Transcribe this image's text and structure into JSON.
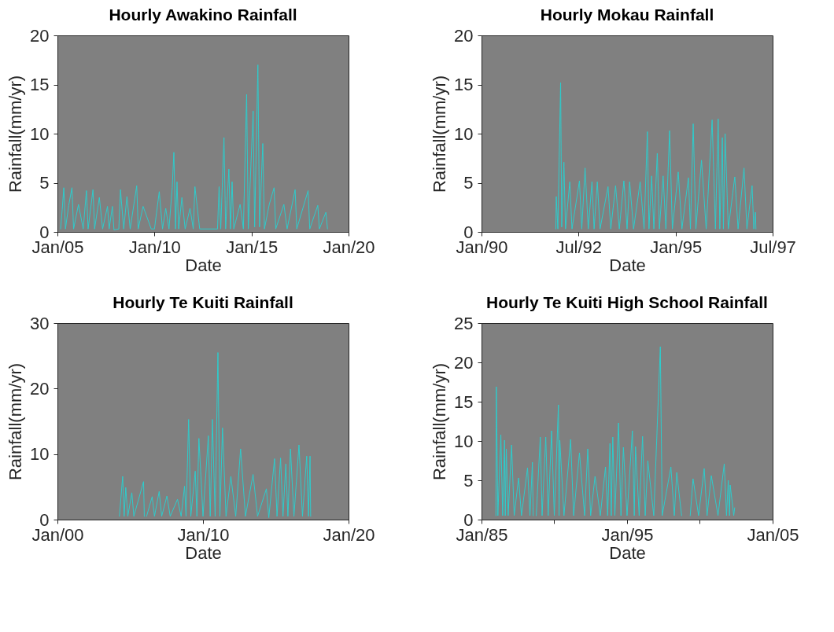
{
  "chart_data": [
    {
      "type": "line",
      "title": "Hourly Awakino Rainfall",
      "xlabel": "Date",
      "ylabel": "Rainfall(mm/yr)",
      "xlim": [
        "2005-01-01",
        "2020-01-01"
      ],
      "xticks": [
        {
          "value": "2005-01-01",
          "label": "Jan/05"
        },
        {
          "value": "2010-01-01",
          "label": "Jan/10"
        },
        {
          "value": "2015-01-01",
          "label": "Jan/15"
        },
        {
          "value": "2020-01-01",
          "label": "Jan/20"
        }
      ],
      "ylim": [
        0,
        20
      ],
      "yticks": [
        0,
        5,
        10,
        15,
        20
      ],
      "series": [
        {
          "color": "#2ecccc",
          "x": [
            "2005-03-01",
            "2005-04-01",
            "2005-05-01",
            "2005-06-01",
            "2005-08-01",
            "2005-10-01",
            "2005-11-01",
            "2006-02-01",
            "2006-05-01",
            "2006-07-01",
            "2006-08-01",
            "2006-11-01",
            "2006-12-01",
            "2007-03-01",
            "2007-05-01",
            "2007-08-01",
            "2007-09-01",
            "2007-11-01",
            "2007-12-01",
            "2008-03-01",
            "2008-04-01",
            "2008-06-01",
            "2008-08-01",
            "2008-10-01",
            "2009-02-01",
            "2009-03-01",
            "2009-06-01",
            "2009-11-01",
            "2010-01-01",
            "2010-04-01",
            "2010-06-01",
            "2010-08-01",
            "2010-10-01",
            "2010-12-01",
            "2011-01-01",
            "2011-02-01",
            "2011-03-01",
            "2011-04-01",
            "2011-06-01",
            "2011-08-01",
            "2011-11-01",
            "2012-01-01",
            "2012-02-01",
            "2012-05-01",
            "2013-04-01",
            "2013-05-01",
            "2013-06-01",
            "2013-08-01",
            "2013-09-01",
            "2013-11-01",
            "2013-12-01",
            "2014-01-01",
            "2014-02-01",
            "2014-06-01",
            "2014-08-01",
            "2014-10-01",
            "2014-11-01",
            "2015-02-01",
            "2015-03-01",
            "2015-05-01",
            "2015-06-01",
            "2015-08-01",
            "2015-09-01",
            "2015-12-01",
            "2016-03-01",
            "2016-04-01",
            "2016-09-01",
            "2016-11-01",
            "2017-04-01",
            "2017-05-01",
            "2017-12-01",
            "2018-01-01",
            "2018-06-01",
            "2018-07-01",
            "2018-11-01",
            "2018-12-01"
          ],
          "values": [
            0.3,
            2.3,
            4.5,
            0.3,
            2.7,
            4.5,
            0.3,
            2.8,
            0.3,
            4.2,
            0.3,
            4.3,
            0.3,
            3.5,
            0.3,
            2.6,
            0.3,
            2.6,
            0.2,
            0.3,
            4.3,
            0.3,
            3.6,
            0.3,
            4.7,
            0.3,
            2.6,
            0.3,
            0.3,
            4.1,
            0.3,
            2.4,
            0.3,
            4.5,
            8.1,
            0.3,
            5.1,
            0.3,
            3.5,
            0.3,
            2.4,
            0.3,
            4.6,
            0.3,
            0.3,
            4.6,
            0.3,
            9.6,
            0.3,
            6.4,
            0.3,
            5.1,
            0.3,
            2.8,
            0.3,
            14.0,
            0.3,
            12.3,
            0.5,
            17.0,
            0.5,
            9.0,
            0.3,
            2.8,
            4.5,
            0.3,
            2.8,
            0.3,
            4.3,
            0.3,
            4.2,
            0.3,
            2.7,
            0.3,
            2.0,
            0.3
          ]
        }
      ]
    },
    {
      "type": "line",
      "title": "Hourly Mokau Rainfall",
      "xlabel": "Date",
      "ylabel": "Rainfall(mm/yr)",
      "xlim": [
        "1990-01-01",
        "1997-07-01"
      ],
      "xticks": [
        {
          "value": "1990-01-01",
          "label": "Jan/90"
        },
        {
          "value": "1992-07-01",
          "label": "Jul/92"
        },
        {
          "value": "1995-01-01",
          "label": "Jan/95"
        },
        {
          "value": "1997-07-01",
          "label": "Jul/97"
        }
      ],
      "ylim": [
        0,
        20
      ],
      "yticks": [
        0,
        5,
        10,
        15,
        20
      ],
      "series": [
        {
          "color": "#2ecccc",
          "x": [
            "1991-12-01",
            "1991-12-05",
            "1991-12-20",
            "1992-01-15",
            "1992-01-25",
            "1992-02-15",
            "1992-03-01",
            "1992-04-10",
            "1992-05-01",
            "1992-07-10",
            "1992-08-01",
            "1992-09-01",
            "1992-10-01",
            "1992-11-05",
            "1992-11-25",
            "1992-12-25",
            "1993-01-20",
            "1993-04-05",
            "1993-05-01",
            "1993-06-15",
            "1993-07-20",
            "1993-09-01",
            "1993-10-01",
            "1993-10-25",
            "1993-12-01",
            "1994-02-01",
            "1994-03-10",
            "1994-04-10",
            "1994-04-25",
            "1994-05-20",
            "1994-06-10",
            "1994-07-12",
            "1994-08-01",
            "1994-09-05",
            "1994-10-01",
            "1994-11-05",
            "1994-12-01",
            "1995-01-25",
            "1995-03-01",
            "1995-05-01",
            "1995-05-20",
            "1995-06-15",
            "1995-07-10",
            "1995-09-01",
            "1995-10-15",
            "1995-12-10",
            "1996-01-10",
            "1996-02-05",
            "1996-02-20",
            "1996-03-15",
            "1996-03-25",
            "1996-04-10",
            "1996-05-10",
            "1996-07-10",
            "1996-08-10",
            "1996-10-05",
            "1996-11-01",
            "1996-12-20",
            "1997-01-05",
            "1997-01-20",
            "1997-01-25"
          ],
          "values": [
            0.3,
            3.6,
            0.3,
            15.2,
            0.5,
            7.1,
            0.3,
            5.1,
            0.3,
            5.2,
            0.3,
            6.5,
            0.3,
            5.1,
            0.3,
            5.1,
            0.3,
            4.6,
            0.3,
            4.7,
            0.3,
            5.2,
            0.3,
            5.1,
            0.3,
            5.1,
            0.3,
            10.2,
            0.3,
            5.7,
            0.3,
            8.0,
            0.3,
            5.7,
            0.3,
            10.3,
            0.3,
            6.1,
            0.3,
            5.5,
            0.3,
            11.0,
            0.3,
            7.3,
            0.3,
            11.4,
            0.3,
            11.5,
            0.3,
            9.6,
            0.3,
            10.0,
            0.3,
            5.6,
            0.3,
            6.5,
            0.3,
            4.7,
            0.3,
            2.0,
            0.3
          ]
        }
      ]
    },
    {
      "type": "line",
      "title": "Hourly Te Kuiti Rainfall",
      "xlabel": "Date",
      "ylabel": "Rainfall(mm/yr)",
      "xlim": [
        "2000-01-01",
        "2020-01-01"
      ],
      "xticks": [
        {
          "value": "2000-01-01",
          "label": "Jan/00"
        },
        {
          "value": "2010-01-01",
          "label": "Jan/10"
        },
        {
          "value": "2020-01-01",
          "label": "Jan/20"
        }
      ],
      "ylim": [
        0,
        30
      ],
      "yticks": [
        0,
        10,
        20,
        30
      ],
      "series": [
        {
          "color": "#2ecccc",
          "x": [
            "2004-04-05",
            "2004-06-25",
            "2004-08-01",
            "2004-09-10",
            "2004-11-01",
            "2005-02-10",
            "2005-04-01",
            "2005-12-01",
            "2005-12-20",
            "2006-01-20",
            "2006-02-15",
            "2006-07-05",
            "2006-09-01",
            "2006-12-28",
            "2007-03-01",
            "2007-07-10",
            "2007-10-01",
            "2008-04-01",
            "2008-07-01",
            "2008-09-25",
            "2008-11-01",
            "2009-01-05",
            "2009-03-01",
            "2009-06-20",
            "2009-08-01",
            "2009-09-20",
            "2010-01-01",
            "2010-05-15",
            "2010-07-01",
            "2010-08-25",
            "2010-11-01",
            "2011-01-10",
            "2011-03-01",
            "2011-05-05",
            "2011-08-01",
            "2011-12-01",
            "2012-04-01",
            "2012-08-01",
            "2012-12-01",
            "2013-06-10",
            "2013-10-01",
            "2014-05-10",
            "2014-07-10",
            "2014-12-01",
            "2015-02-01",
            "2015-05-01",
            "2015-07-01",
            "2015-09-10",
            "2015-11-01",
            "2016-01-05",
            "2016-04-01",
            "2016-08-05",
            "2016-11-01",
            "2017-02-15",
            "2017-04-01",
            "2017-05-10",
            "2017-05-25"
          ],
          "values": [
            0.5,
            6.6,
            0.5,
            4.9,
            0.5,
            4.1,
            0.5,
            5.8,
            0.5,
            null,
            0.5,
            3.5,
            0.5,
            4.3,
            0.5,
            3.6,
            0.5,
            3.1,
            0.5,
            5.1,
            0.5,
            15.3,
            0.5,
            7.4,
            0.5,
            12.4,
            0.5,
            12.8,
            0.5,
            15.3,
            0.5,
            25.5,
            0.5,
            14.0,
            0.5,
            6.6,
            0.5,
            10.8,
            0.5,
            6.9,
            0.5,
            4.7,
            0.3,
            9.3,
            0.5,
            9.4,
            0.5,
            8.5,
            0.5,
            10.8,
            0.5,
            11.4,
            0.5,
            9.7,
            0.5,
            9.7,
            0.5
          ]
        }
      ]
    },
    {
      "type": "line",
      "title": "Hourly Te Kuiti High School Rainfall",
      "xlabel": "Date",
      "ylabel": "Rainfall(mm/yr)",
      "xlim": [
        "1985-01-01",
        "2005-01-01"
      ],
      "xticks": [
        {
          "value": "1985-01-01",
          "label": "Jan/85"
        },
        {
          "value": "1990-01-01",
          "label": null
        },
        {
          "value": "1995-01-01",
          "label": "Jan/95"
        },
        {
          "value": "2000-01-01",
          "label": null
        },
        {
          "value": "2005-01-01",
          "label": "Jan/05"
        }
      ],
      "ylim": [
        0,
        25
      ],
      "yticks": [
        0,
        5,
        10,
        15,
        20,
        25
      ],
      "series": [
        {
          "color": "#2ecccc",
          "x": [
            "1985-12-28",
            "1986-01-08",
            "1986-02-15",
            "1986-05-01",
            "1986-06-15",
            "1986-08-01",
            "1986-08-20",
            "1986-09-15",
            "1986-11-01",
            "1987-01-25",
            "1987-04-01",
            "1987-07-20",
            "1987-10-01",
            "1988-03-01",
            "1988-05-01",
            "1988-07-01",
            "1988-07-20",
            "1988-08-20",
            "1988-10-05",
            "1989-01-15",
            "1989-03-01",
            "1989-06-01",
            "1989-08-01",
            "1989-10-25",
            "1990-01-01",
            "1990-04-15",
            "1990-05-01",
            "1990-05-20",
            "1990-09-01",
            "1991-02-15",
            "1991-05-01",
            "1991-09-25",
            "1992-02-01",
            "1992-04-20",
            "1992-07-01",
            "1992-10-20",
            "1993-03-01",
            "1993-07-10",
            "1993-09-01",
            "1993-10-30",
            "1993-12-01",
            "1994-01-08",
            "1994-03-01",
            "1994-06-01",
            "1994-08-01",
            "1994-10-01",
            "1995-01-01",
            "1995-05-15",
            "1995-07-01",
            "1995-08-01",
            "1995-11-01",
            "1996-01-25",
            "1996-04-01",
            "1996-06-05",
            "1996-11-01",
            "1997-04-15",
            "1997-06-01",
            "1998-01-05",
            "1998-04-01",
            "1998-06-01",
            "1998-10-01",
            "1998-12-25",
            "1999-03-01",
            "1999-05-05",
            "1999-07-15",
            "1999-12-01",
            "2000-04-20",
            "2000-07-01",
            "2000-10-15",
            "2001-04-01",
            "2001-09-05",
            "2001-11-01",
            "2001-12-15",
            "2002-01-15",
            "2002-02-01",
            "2002-05-01",
            "2002-05-25"
          ],
          "values": [
            0.5,
            16.9,
            0.5,
            10.8,
            0.5,
            10.1,
            0.5,
            9.0,
            0.5,
            9.5,
            0.5,
            5.3,
            0.5,
            6.6,
            0.5,
            7.3,
            0.5,
            null,
            0.5,
            10.5,
            0.5,
            10.5,
            0.5,
            11.3,
            0.5,
            14.6,
            0.5,
            10.1,
            0.5,
            10.2,
            0.5,
            8.5,
            0.5,
            9.0,
            0.5,
            5.5,
            0.5,
            6.7,
            0.5,
            9.7,
            0.5,
            10.5,
            0.5,
            12.3,
            0.5,
            9.2,
            0.5,
            11.3,
            0.5,
            9.3,
            0.5,
            10.6,
            0.5,
            7.5,
            0.5,
            22.0,
            0.5,
            6.7,
            0.5,
            6.0,
            0.5,
            null,
            null,
            0.5,
            5.2,
            0.5,
            6.5,
            0.5,
            5.6,
            0.5,
            7.1,
            0.5,
            5.0,
            0.5,
            4.4,
            0.5,
            1.5
          ]
        }
      ]
    }
  ]
}
